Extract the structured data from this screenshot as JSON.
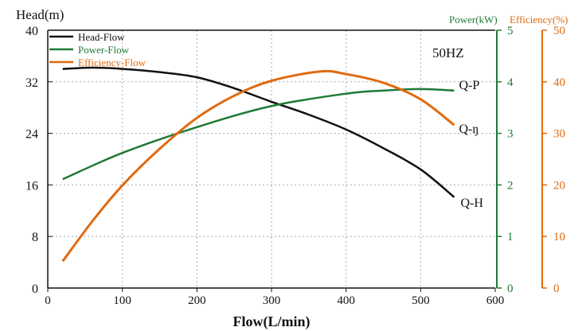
{
  "chart_data": {
    "type": "line",
    "title": "",
    "annotation": "50HZ",
    "xlabel": "Flow(L/min)",
    "xlim": [
      0,
      600
    ],
    "xticks": [
      0,
      100,
      200,
      300,
      400,
      500,
      600
    ],
    "grid": true,
    "legend_placement": "top-left",
    "axes": {
      "head": {
        "label": "Head(m)",
        "range": [
          0,
          40
        ],
        "ticks": [
          0,
          8,
          16,
          24,
          32,
          40
        ],
        "color": "#111111"
      },
      "power": {
        "label": "Power(kW)",
        "range": [
          0,
          5
        ],
        "ticks": [
          0,
          1,
          2,
          3,
          4,
          5
        ],
        "color": "#1e7a35"
      },
      "efficiency": {
        "label": "Efficiency(%)",
        "range": [
          0,
          50
        ],
        "ticks": [
          0,
          10,
          20,
          30,
          40,
          50
        ],
        "color": "#e06a10"
      }
    },
    "series": [
      {
        "name": "Head-Flow",
        "end_label": "Q-H",
        "axis": "head",
        "color": "#111111",
        "x": [
          20,
          60,
          100,
          150,
          200,
          250,
          300,
          350,
          400,
          450,
          500,
          545
        ],
        "y": [
          34.0,
          34.2,
          34.0,
          33.5,
          32.7,
          31.0,
          28.9,
          26.9,
          24.6,
          21.7,
          18.4,
          14.1
        ]
      },
      {
        "name": "Power-Flow",
        "end_label": "Q-P",
        "axis": "power",
        "color": "#1e7a35",
        "x": [
          20,
          100,
          200,
          300,
          400,
          450,
          500,
          545
        ],
        "y": [
          2.11,
          2.62,
          3.12,
          3.53,
          3.77,
          3.83,
          3.86,
          3.83
        ]
      },
      {
        "name": "Efficiency-Flow",
        "end_label": "Q-ŋ",
        "axis": "efficiency",
        "color": "#e06a10",
        "x": [
          20,
          60,
          100,
          150,
          200,
          250,
          300,
          365,
          400,
          450,
          500,
          545
        ],
        "y": [
          5.2,
          13.0,
          19.9,
          27.0,
          33.0,
          37.3,
          40.2,
          42.0,
          41.5,
          39.8,
          36.6,
          31.6
        ]
      }
    ]
  }
}
